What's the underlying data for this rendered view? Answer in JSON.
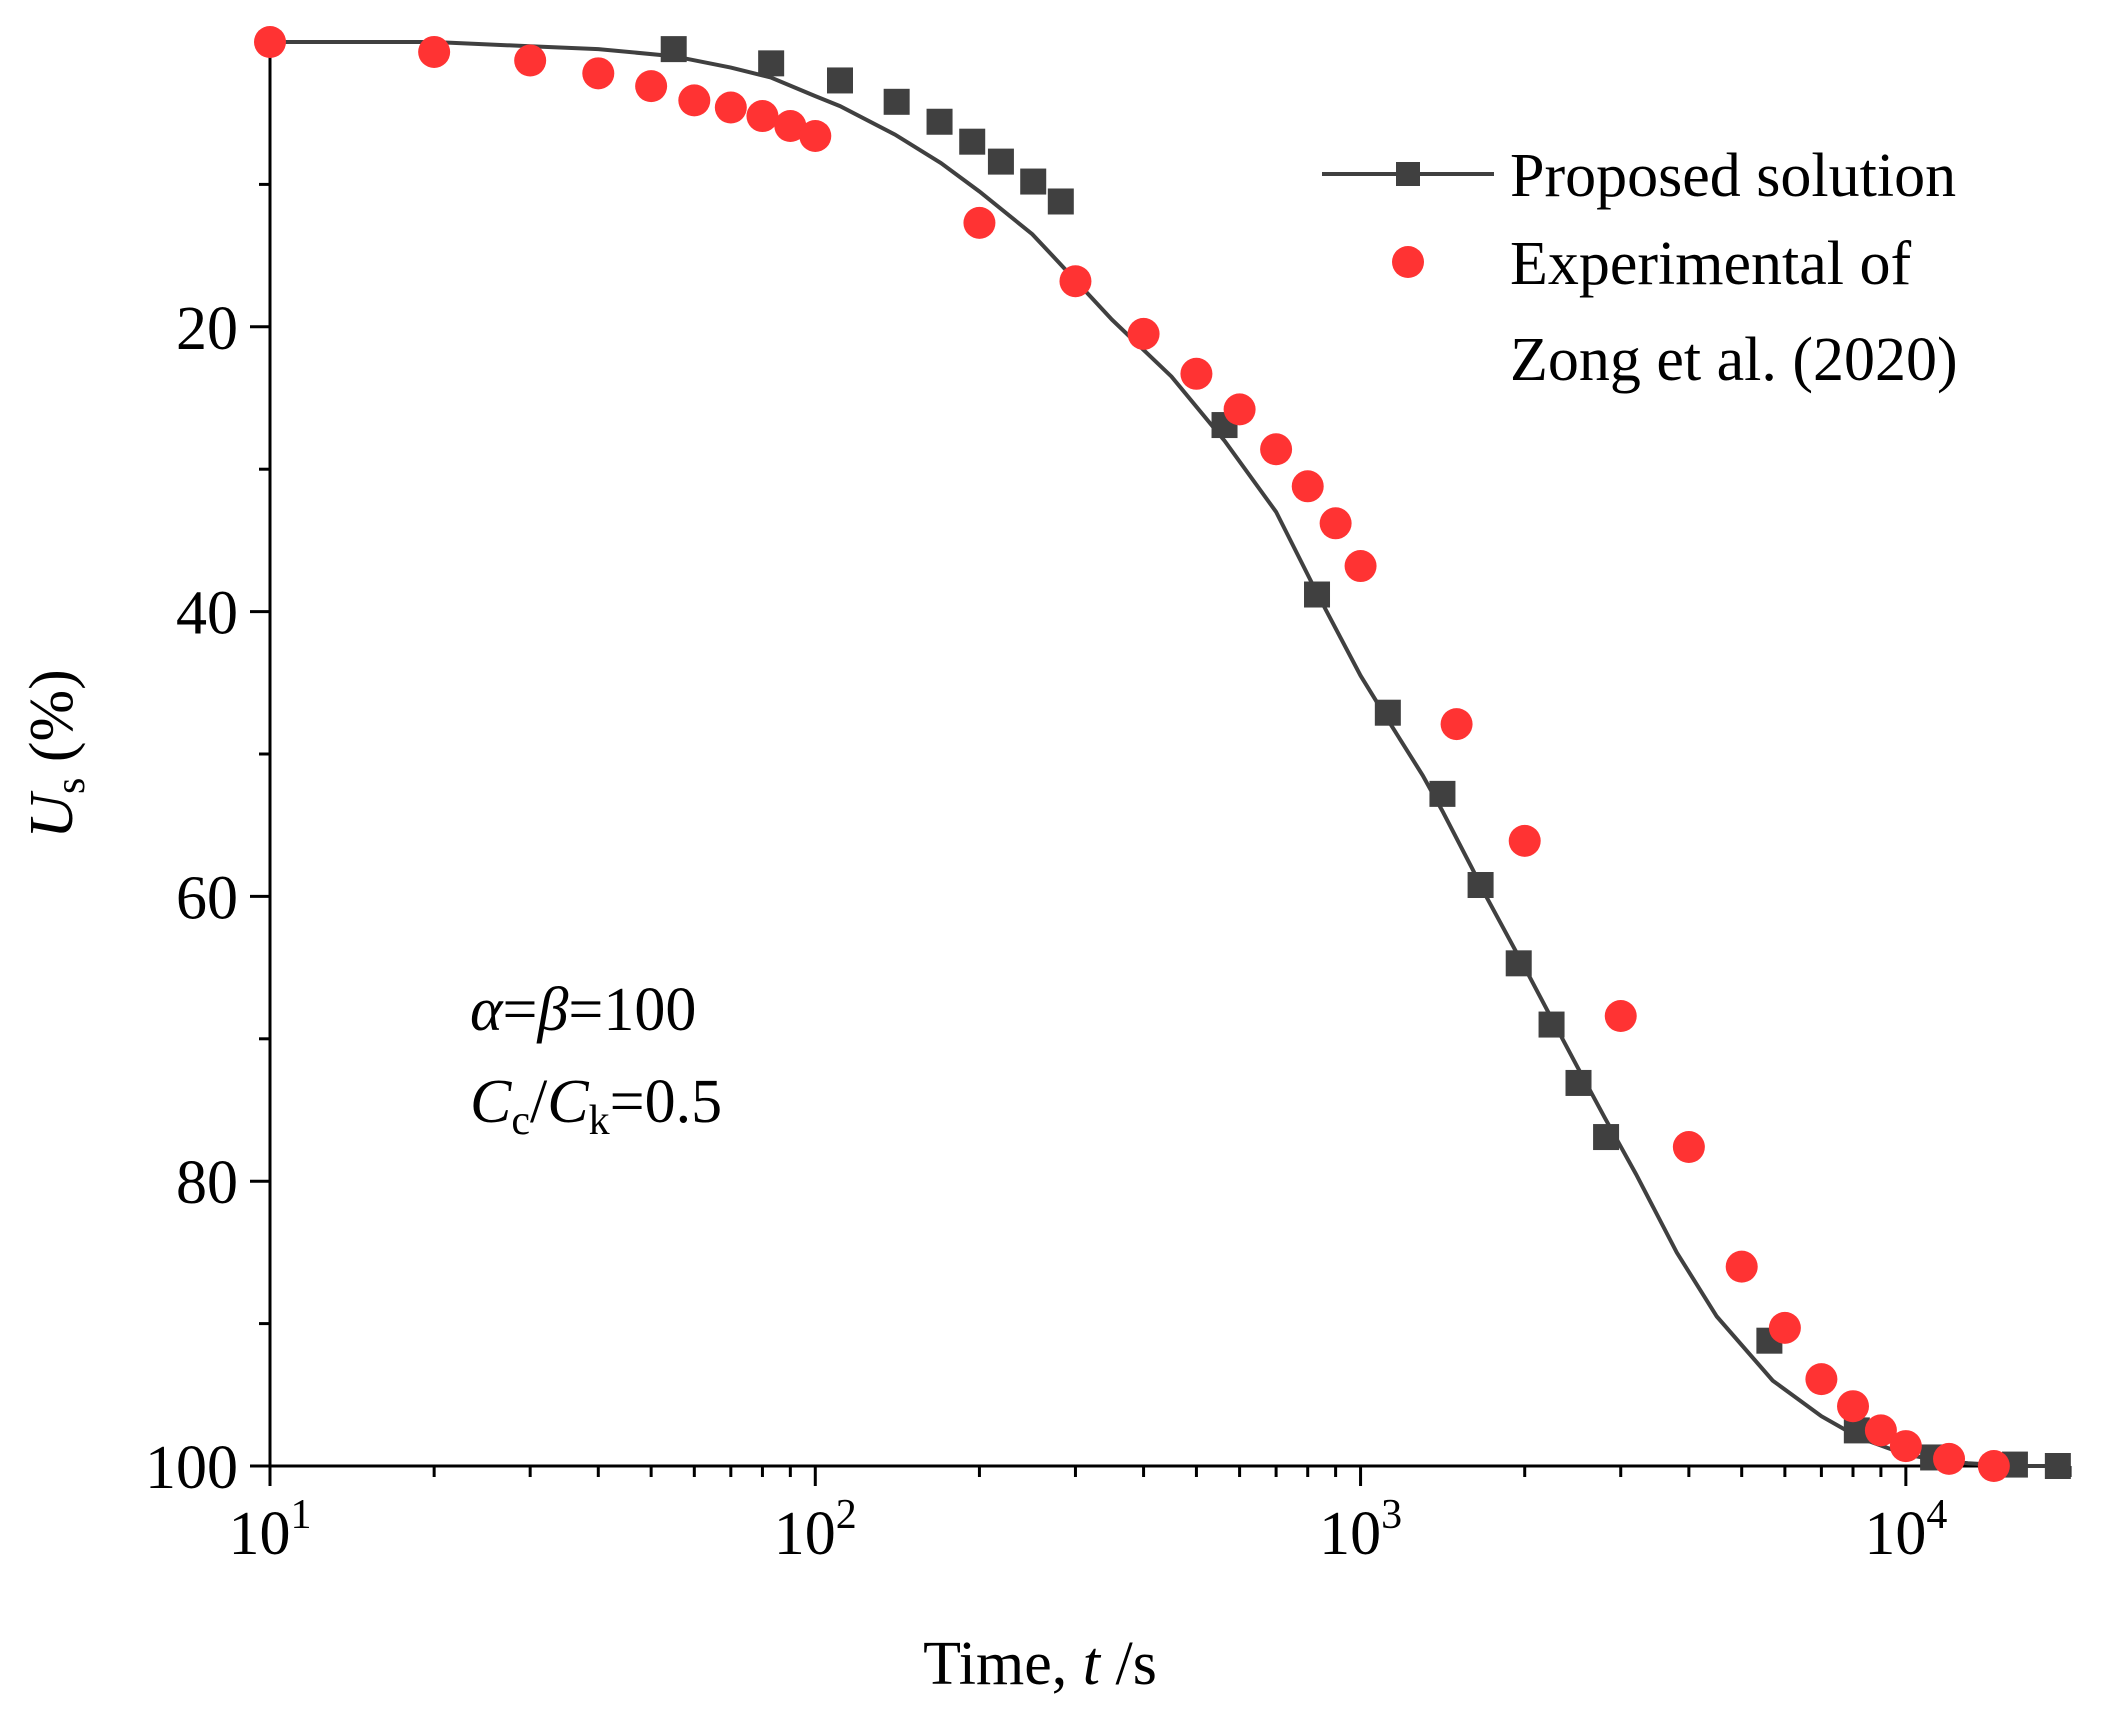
{
  "chart_data": {
    "type": "scatter",
    "title": "",
    "xscale": "log",
    "xlim": [
      10,
      20000
    ],
    "ylim": [
      0,
      100
    ],
    "y_inverted": true,
    "xlabel": {
      "prefix": "Time, ",
      "var": "t",
      "suffix": " /s"
    },
    "ylabel": {
      "var": "U",
      "sub": "s",
      "suffix": " (%)"
    },
    "x_ticks": [
      {
        "value": 10,
        "base": "10",
        "exp": "1"
      },
      {
        "value": 100,
        "base": "10",
        "exp": "2"
      },
      {
        "value": 1000,
        "base": "10",
        "exp": "3"
      },
      {
        "value": 10000,
        "base": "10",
        "exp": "4"
      }
    ],
    "y_major_ticks": [
      20,
      40,
      60,
      80,
      100
    ],
    "y_minor_ticks": [
      10,
      30,
      50,
      70,
      90
    ],
    "legend_position": "top-right",
    "series": [
      {
        "name": "Proposed solution",
        "color": "#404040",
        "marker": "square",
        "line": true,
        "curve": [
          [
            10,
            0
          ],
          [
            20,
            0
          ],
          [
            30,
            0.3
          ],
          [
            40,
            0.5
          ],
          [
            55,
            1
          ],
          [
            70,
            1.8
          ],
          [
            83,
            2.5
          ],
          [
            100,
            3.8
          ],
          [
            111,
            4.5
          ],
          [
            140,
            6.5
          ],
          [
            170,
            8.5
          ],
          [
            200,
            10.5
          ],
          [
            250,
            13.5
          ],
          [
            280,
            15.5
          ],
          [
            350,
            19.5
          ],
          [
            450,
            23.5
          ],
          [
            563,
            28
          ],
          [
            700,
            33
          ],
          [
            832,
            38.7
          ],
          [
            1000,
            44.5
          ],
          [
            1122,
            47.6
          ],
          [
            1300,
            51.5
          ],
          [
            1413,
            54
          ],
          [
            1600,
            58
          ],
          [
            1700,
            60
          ],
          [
            2000,
            65
          ],
          [
            2200,
            68
          ],
          [
            2500,
            72
          ],
          [
            2800,
            75.5
          ],
          [
            3200,
            79.5
          ],
          [
            3800,
            85
          ],
          [
            4500,
            89.5
          ],
          [
            5700,
            94
          ],
          [
            7000,
            96.5
          ],
          [
            8200,
            98
          ],
          [
            10000,
            99.2
          ],
          [
            11500,
            99.6
          ],
          [
            13000,
            99.8
          ],
          [
            16000,
            100
          ],
          [
            20000,
            100
          ]
        ],
        "x": [
          55,
          83,
          111,
          141,
          169,
          194,
          219,
          251,
          282,
          563,
          832,
          1122,
          1413,
          1660,
          1950,
          2240,
          2510,
          2820,
          5620,
          8130,
          11220,
          15850,
          19000
        ],
        "y": [
          0.5,
          1.5,
          2.7,
          4.2,
          5.6,
          7.0,
          8.4,
          9.8,
          11.2,
          26.9,
          38.8,
          47.1,
          52.8,
          59.2,
          64.7,
          69.0,
          73.1,
          76.9,
          91.2,
          97.5,
          99.4,
          99.9,
          100
        ]
      },
      {
        "name": "Experimental of",
        "name_line2": "Zong et al. (2020)",
        "color": "#ff3333",
        "marker": "circle",
        "line": false,
        "x": [
          10,
          20,
          30,
          40,
          50,
          60,
          70,
          80,
          90,
          100,
          200,
          300,
          400,
          500,
          600,
          700,
          800,
          900,
          1000,
          1500,
          2000,
          3000,
          4000,
          5000,
          6000,
          7000,
          8000,
          9000,
          10000,
          12000,
          14500
        ],
        "y": [
          0,
          0.7,
          1.3,
          2.2,
          3.1,
          4.1,
          4.6,
          5.2,
          5.9,
          6.6,
          12.7,
          16.8,
          20.5,
          23.3,
          25.8,
          28.6,
          31.2,
          33.8,
          36.8,
          47.9,
          56.1,
          68.4,
          77.6,
          86.0,
          90.3,
          93.9,
          95.8,
          97.5,
          98.6,
          99.5,
          100
        ]
      }
    ],
    "annotations": [
      {
        "name": "parameter-alpha-beta",
        "lhs": "α",
        "mid": "β",
        "value": "100"
      },
      {
        "name": "parameter-cc-ck",
        "a": "C",
        "a_sub": "c",
        "b": "C",
        "b_sub": "k",
        "value": "0.5"
      }
    ]
  }
}
